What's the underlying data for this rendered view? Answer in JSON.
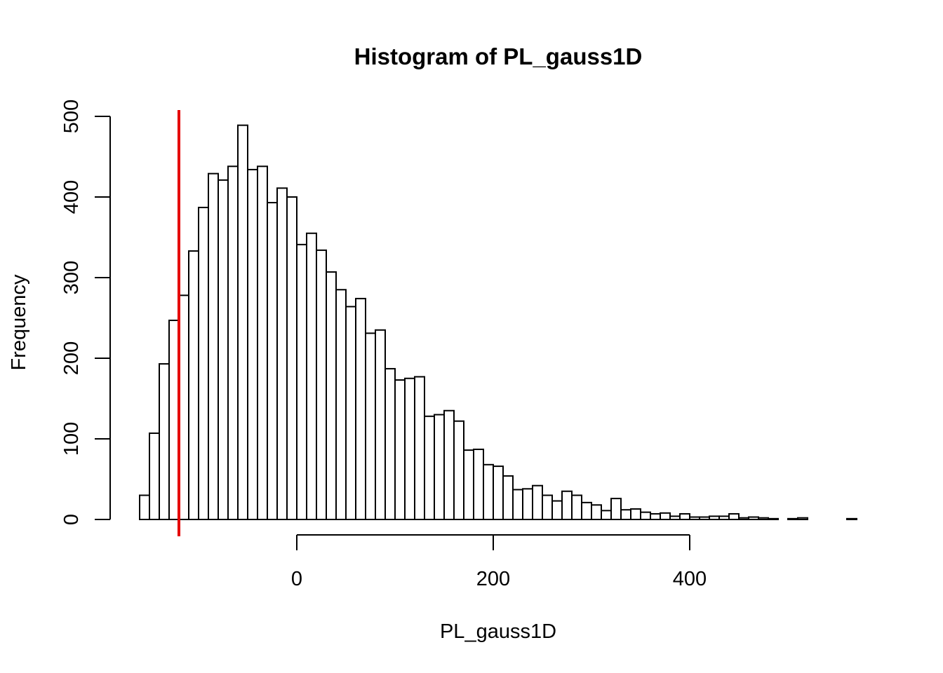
{
  "chart_data": {
    "type": "bar",
    "subtype": "histogram",
    "title": "Histogram of PL_gauss1D",
    "xlabel": "PL_gauss1D",
    "ylabel": "Frequency",
    "bin_width": 10,
    "bin_start": -160,
    "xlim": [
      -160,
      570
    ],
    "ylim": [
      0,
      500
    ],
    "x_ticks": [
      0,
      200,
      400
    ],
    "y_ticks": [
      0,
      100,
      200,
      300,
      400,
      500
    ],
    "values": [
      30,
      107,
      193,
      247,
      278,
      333,
      387,
      429,
      421,
      438,
      489,
      434,
      438,
      393,
      411,
      400,
      341,
      355,
      334,
      307,
      285,
      264,
      274,
      231,
      235,
      187,
      173,
      175,
      177,
      128,
      130,
      135,
      122,
      86,
      87,
      68,
      66,
      54,
      37,
      38,
      42,
      30,
      23,
      35,
      30,
      21,
      18,
      11,
      26,
      12,
      13,
      9,
      7,
      8,
      4,
      7,
      3,
      3,
      4,
      4,
      7,
      2,
      3,
      2,
      1,
      0,
      1,
      2,
      0,
      0,
      0,
      0,
      1
    ],
    "reference_line": {
      "x": -120,
      "color": "#e50000"
    },
    "grid": false,
    "legend": "none"
  }
}
